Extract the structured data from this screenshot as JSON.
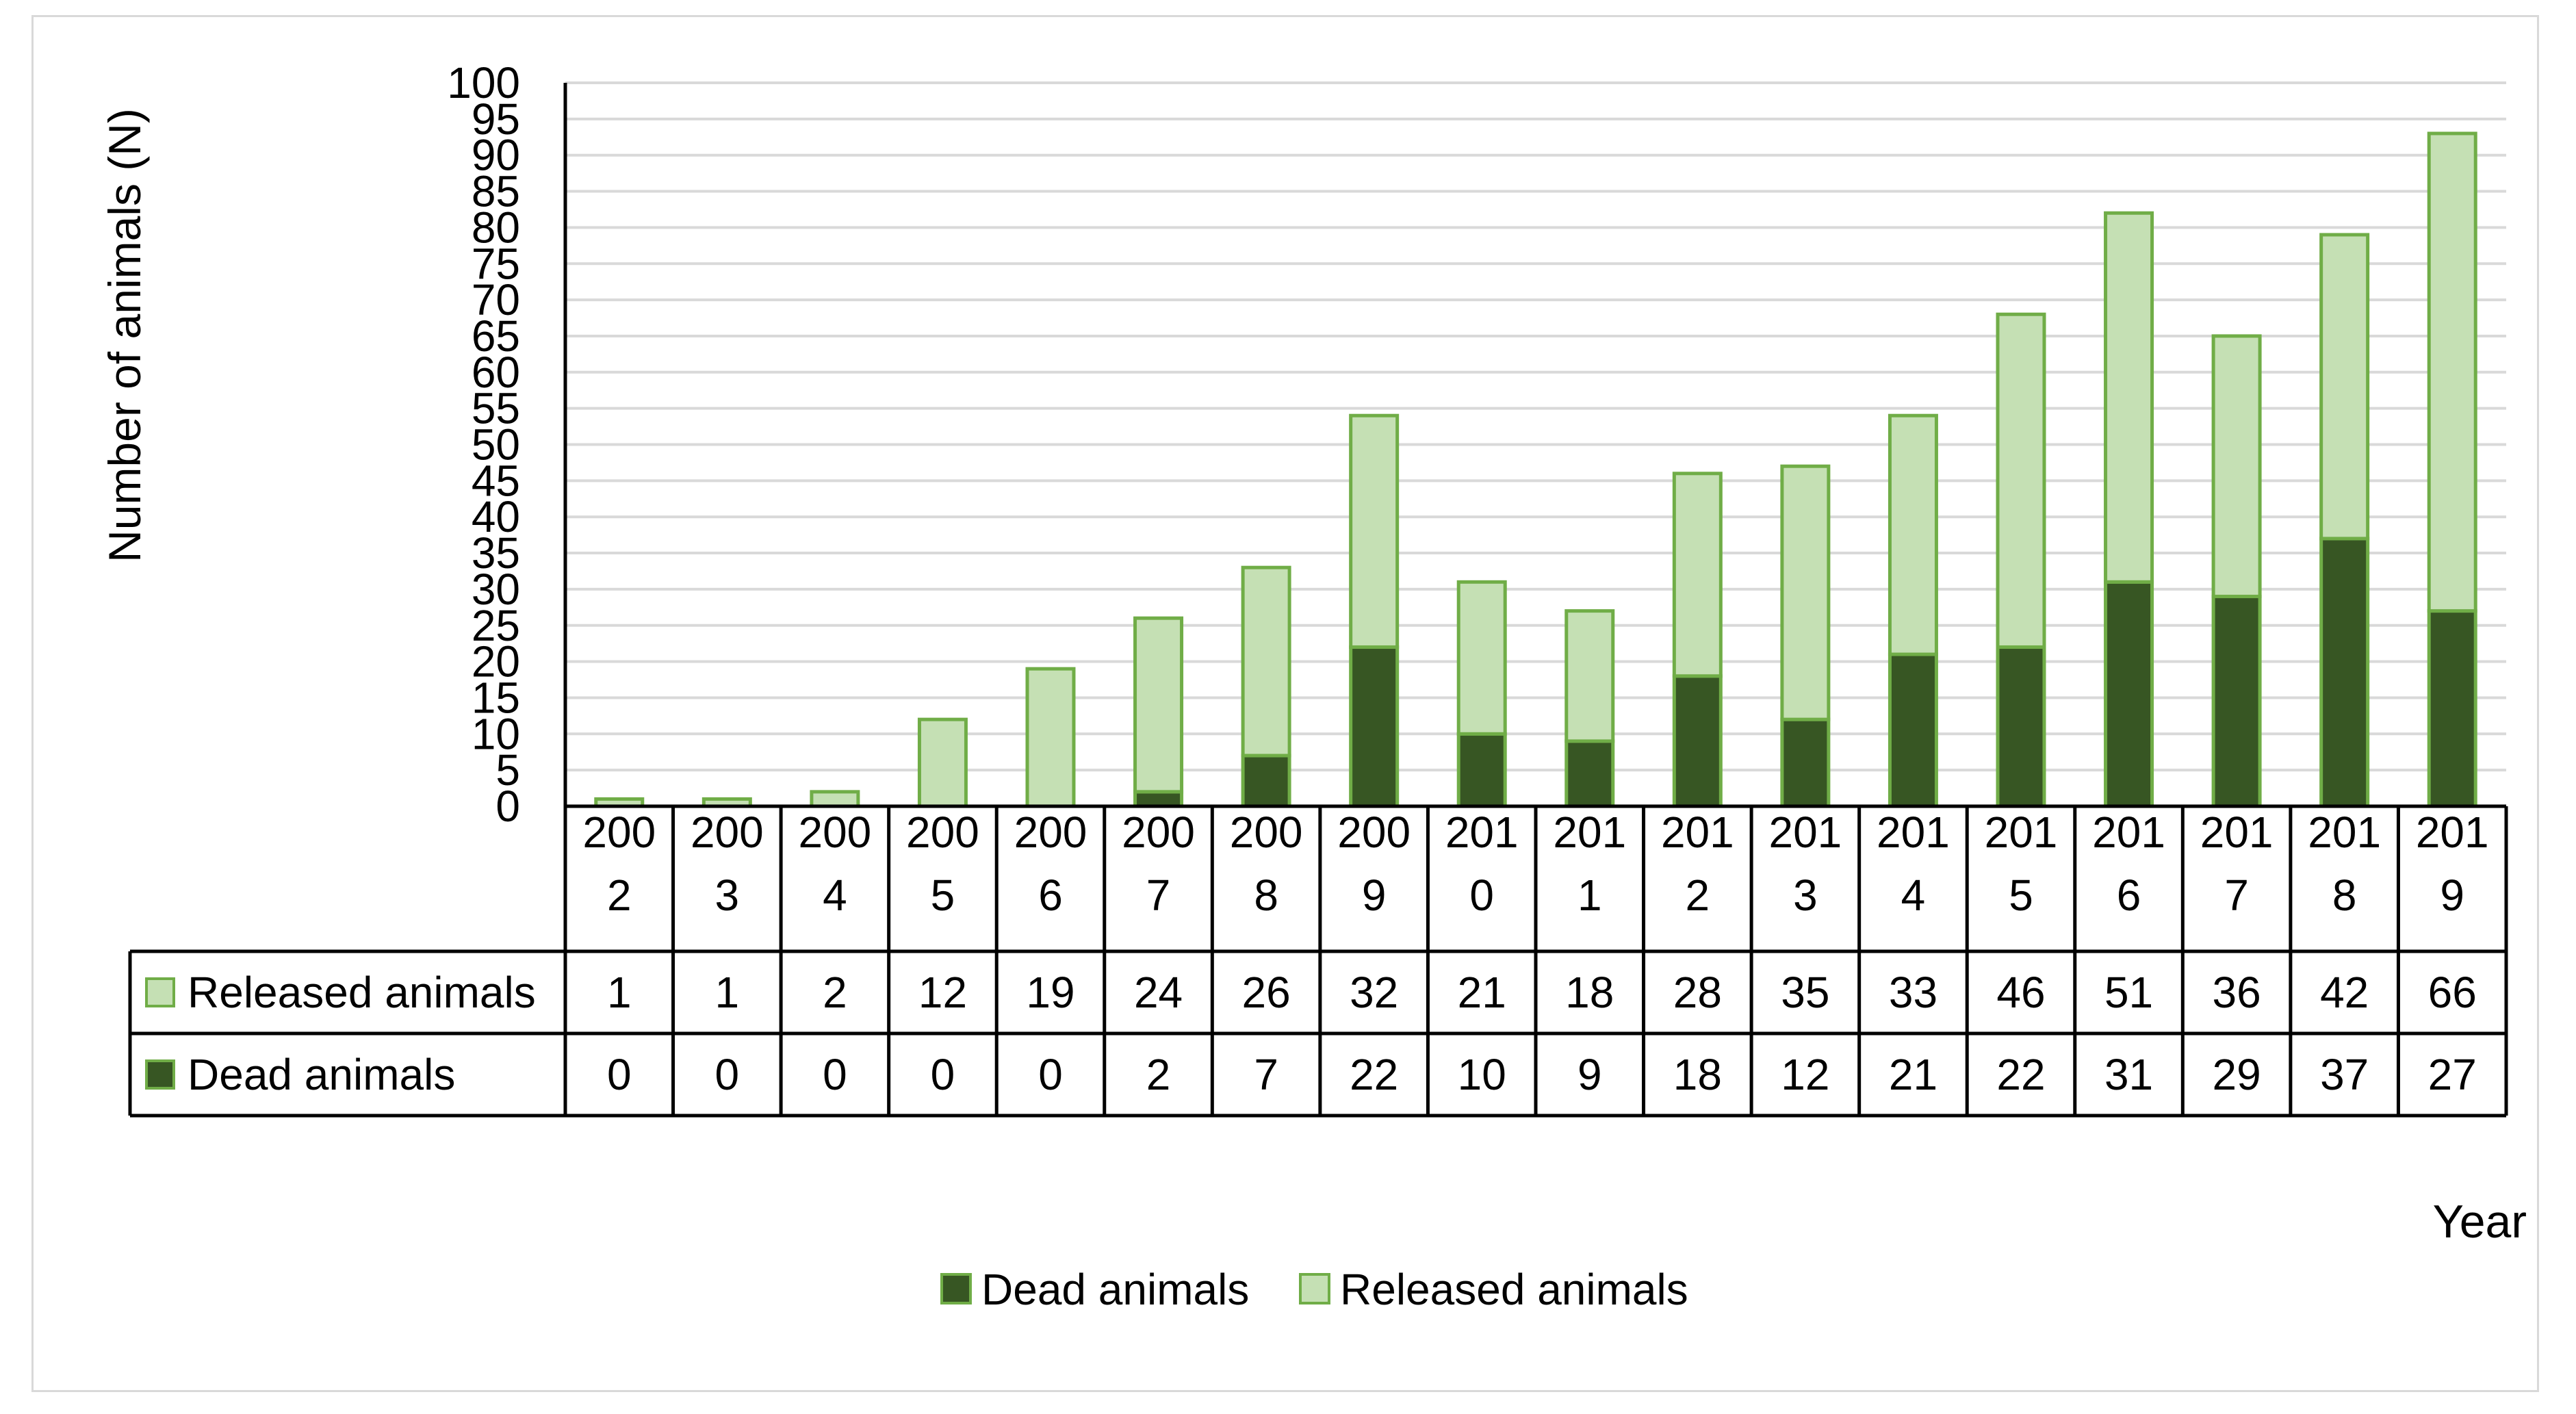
{
  "chart_data": {
    "type": "bar",
    "stacked": true,
    "title": "",
    "xlabel": "Year",
    "ylabel": "Number of animals (N)",
    "ylim": [
      0,
      100
    ],
    "ytick_step": 5,
    "grid": true,
    "legend_position": "bottom-center",
    "categories": [
      "2002",
      "2003",
      "2004",
      "2005",
      "2006",
      "2007",
      "2008",
      "2009",
      "2010",
      "2011",
      "2012",
      "2013",
      "2014",
      "2015",
      "2016",
      "2017",
      "2018",
      "2019"
    ],
    "series": [
      {
        "name": "Dead animals",
        "color": "#375623",
        "stroke": "#70ad47",
        "values": [
          0,
          0,
          0,
          0,
          0,
          2,
          7,
          22,
          10,
          9,
          18,
          12,
          21,
          22,
          31,
          29,
          37,
          27
        ]
      },
      {
        "name": "Released animals",
        "color": "#c5e0b4",
        "stroke": "#70ad47",
        "values": [
          1,
          1,
          2,
          12,
          19,
          24,
          26,
          32,
          21,
          18,
          28,
          35,
          33,
          46,
          51,
          36,
          42,
          66
        ]
      }
    ],
    "data_table": {
      "row_order": [
        "Released animals",
        "Dead animals"
      ]
    }
  }
}
